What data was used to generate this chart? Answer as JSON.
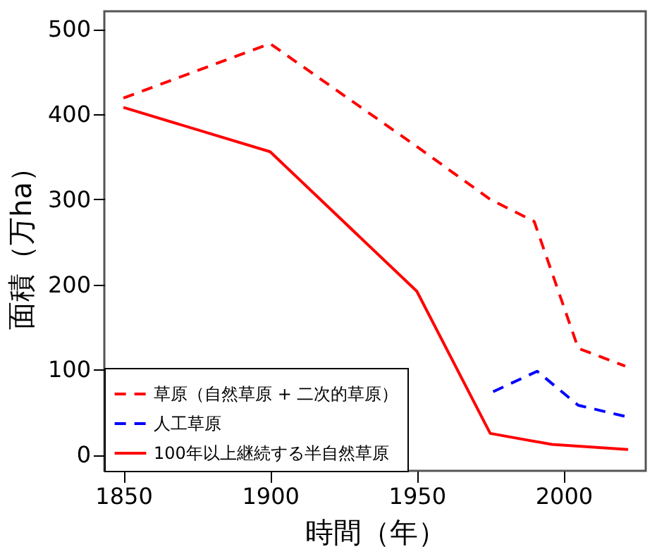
{
  "chart_data": {
    "type": "line",
    "xlabel": "時間（年）",
    "ylabel": "面積（万ha）",
    "xlim": [
      1843.5,
      2028
    ],
    "ylim": [
      -19,
      521
    ],
    "xticks": [
      1850,
      1900,
      1950,
      2000
    ],
    "yticks": [
      0,
      100,
      200,
      300,
      400,
      500
    ],
    "grid": false,
    "legend": "bottom left",
    "marker": "none",
    "series": [
      {
        "name": "草原（自然草原 + 二次的草原）",
        "color": "#ff0000",
        "line_style": "dashed",
        "x": [
          1850,
          1900,
          1950,
          1975,
          1990,
          2005,
          2021
        ],
        "values": [
          419,
          483,
          362,
          300,
          274,
          125,
          104
        ]
      },
      {
        "name": "人工草原",
        "color": "#0000ff",
        "line_style": "dashed",
        "x": [
          1976,
          1991,
          2005,
          2021
        ],
        "values": [
          74,
          98,
          58,
          45
        ]
      },
      {
        "name": "100年以上継続する半自然草原",
        "color": "#ff0000",
        "line_style": "solid",
        "x": [
          1850,
          1900,
          1950,
          1975,
          1996,
          2022
        ],
        "values": [
          408,
          356,
          192,
          25,
          12,
          6
        ]
      }
    ]
  }
}
